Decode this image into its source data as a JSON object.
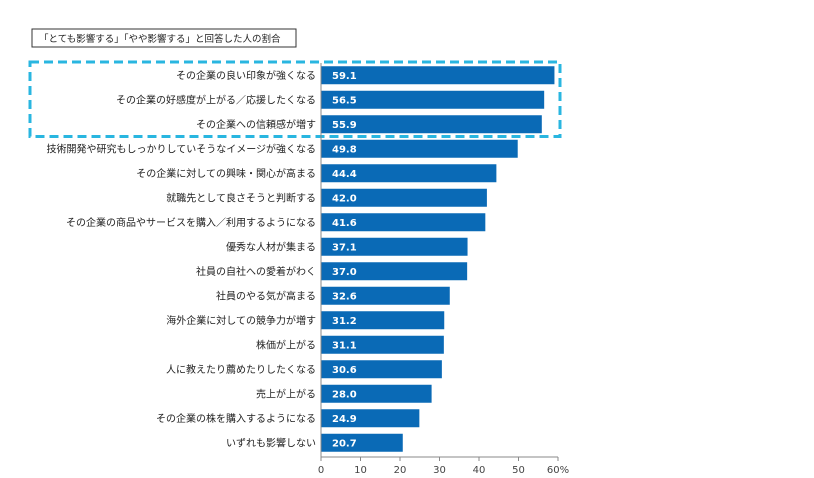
{
  "chart_data": {
    "type": "bar",
    "orientation": "horizontal",
    "title": "「とても影響する」「やや影響する」と回答した人の割合",
    "categories": [
      "その企業の良い印象が強くなる",
      "その企業の好感度が上がる／応援したくなる",
      "その企業への信頼感が増す",
      "技術開発や研究もしっかりしていそうなイメージが強くなる",
      "その企業に対しての興味・関心が高まる",
      "就職先として良さそうと判断する",
      "その企業の商品やサービスを購入／利用するようになる",
      "優秀な人材が集まる",
      "社員の自社への愛着がわく",
      "社員のやる気が高まる",
      "海外企業に対しての競争力が増す",
      "株価が上がる",
      "人に教えたり薦めたりしたくなる",
      "売上が上がる",
      "その企業の株を購入するようになる",
      "いずれも影響しない"
    ],
    "values": [
      59.1,
      56.5,
      55.9,
      49.8,
      44.4,
      42.0,
      41.6,
      37.1,
      37.0,
      32.6,
      31.2,
      31.1,
      30.6,
      28.0,
      24.9,
      20.7
    ],
    "value_labels": [
      "59.1",
      "56.5",
      "55.9",
      "49.8",
      "44.4",
      "42.0",
      "41.6",
      "37.1",
      "37.0",
      "32.6",
      "31.2",
      "31.1",
      "30.6",
      "28.0",
      "24.9",
      "20.7"
    ],
    "xticks": [
      "0",
      "10",
      "20",
      "30",
      "40",
      "50",
      "60%"
    ],
    "xlim": [
      0,
      60
    ],
    "highlighted_top_n": 3,
    "grid": false,
    "colors": {
      "bar": "#0a6ab6",
      "highlight_border": "#29b6e0",
      "text": "#222222"
    }
  }
}
